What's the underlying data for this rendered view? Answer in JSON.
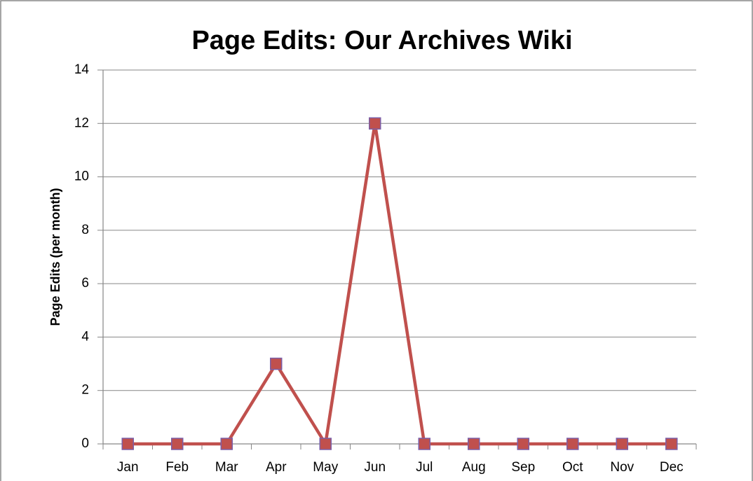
{
  "chart_data": {
    "type": "line",
    "title": "Page Edits: Our Archives Wiki",
    "y_label": "Page Edits (per month)",
    "categories": [
      "Jan",
      "Feb",
      "Mar",
      "Apr",
      "May",
      "Jun",
      "Jul",
      "Aug",
      "Sep",
      "Oct",
      "Nov",
      "Dec"
    ],
    "values": [
      0,
      0,
      0,
      3,
      0,
      12,
      0,
      0,
      0,
      0,
      0,
      0
    ],
    "color": "#c0504d",
    "marker": "square",
    "marker_edge_color": "#7b5ea7",
    "ylim": [
      0,
      14
    ],
    "yticks": [
      0,
      2,
      4,
      6,
      8,
      10,
      12,
      14
    ],
    "grid": true
  }
}
